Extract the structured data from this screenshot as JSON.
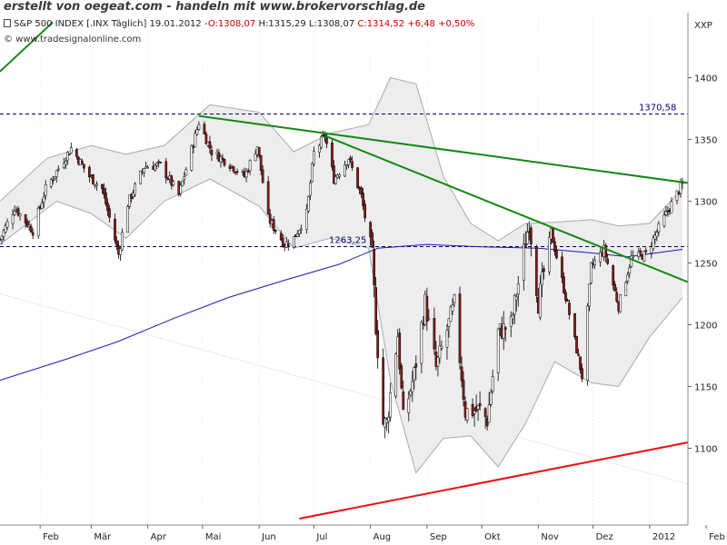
{
  "banner": "erstellt von oegeat.com - handeln mit www.brokervorschlag.de",
  "quote": {
    "instrument": "S&P 500 INDEX [.INX  Täglich] 19.01.2012 -",
    "open": "O:1308,07",
    "high": "H:1315,29",
    "low": "L:1308,07",
    "close_change": "C:1314,52 +6,48 +0,50%"
  },
  "source": "© www.tradesignalonline.com",
  "currency": "XXP",
  "colors": {
    "candle_up": "#ffffff",
    "candle_down": "#8b1a1a",
    "bollinger_fill": "#ededed",
    "bollinger_line": "#aaaaaa",
    "ma_line": "#1a1aaa",
    "trend_green": "#118811",
    "trend_red": "#ee1111",
    "hline": "#000080"
  },
  "chart_data": {
    "type": "candlestick",
    "title": "S&P 500 INDEX [.INX Täglich]",
    "ylim": [
      1043,
      1445
    ],
    "y_ticks": [
      1100,
      1150,
      1200,
      1250,
      1300,
      1350,
      1400
    ],
    "y_tick_labels": [
      "1100",
      "1150",
      "1200",
      "1250",
      "1300",
      "1350",
      "1400"
    ],
    "x_range": [
      "2011-01-10",
      "2012-03-25"
    ],
    "x_ticks": [
      {
        "date": "2011-02-01",
        "label": "Feb"
      },
      {
        "date": "2011-03-01",
        "label": "Mär"
      },
      {
        "date": "2011-04-01",
        "label": "Apr"
      },
      {
        "date": "2011-05-01",
        "label": "Mai"
      },
      {
        "date": "2011-06-01",
        "label": "Jun"
      },
      {
        "date": "2011-07-01",
        "label": "Jul"
      },
      {
        "date": "2011-08-01",
        "label": "Aug"
      },
      {
        "date": "2011-09-01",
        "label": "Sep"
      },
      {
        "date": "2011-10-01",
        "label": "Okt"
      },
      {
        "date": "2011-11-01",
        "label": "Nov"
      },
      {
        "date": "2011-12-01",
        "label": "Dez"
      },
      {
        "date": "2012-01-01",
        "label": "2012"
      },
      {
        "date": "2012-02-01",
        "label": "Feb"
      }
    ],
    "horizontal_lines": [
      {
        "value": 1370.58,
        "label": "1370,58"
      },
      {
        "value": 1263.25,
        "label": "1263,25"
      }
    ],
    "trendlines": [
      {
        "name": "resistance-long",
        "color": "green",
        "points": [
          [
            "2011-04-29",
            1369
          ],
          [
            "2012-03-25",
            1302
          ]
        ]
      },
      {
        "name": "resistance-short",
        "color": "green",
        "points": [
          [
            "2011-07-07",
            1353
          ],
          [
            "2012-03-25",
            1197
          ]
        ]
      },
      {
        "name": "support-channel",
        "color": "green",
        "points": [
          [
            "2011-01-10",
            1405
          ],
          [
            "2011-02-08",
            1445
          ]
        ]
      },
      {
        "name": "support-long",
        "color": "red",
        "points": [
          [
            "2011-06-23",
            1043
          ],
          [
            "2012-03-25",
            1123
          ]
        ]
      }
    ],
    "moving_average_200": [
      [
        "2011-01-10",
        1155
      ],
      [
        "2011-02-15",
        1172
      ],
      [
        "2011-03-15",
        1186
      ],
      [
        "2011-04-15",
        1205
      ],
      [
        "2011-05-15",
        1222
      ],
      [
        "2011-06-15",
        1236
      ],
      [
        "2011-07-15",
        1249
      ],
      [
        "2011-08-05",
        1262
      ],
      [
        "2011-09-01",
        1265
      ],
      [
        "2011-10-01",
        1263
      ],
      [
        "2011-11-01",
        1262
      ],
      [
        "2011-12-01",
        1258
      ],
      [
        "2011-12-20",
        1255
      ],
      [
        "2012-01-19",
        1261
      ]
    ],
    "bollinger": {
      "upper": [
        [
          "2011-01-10",
          1300
        ],
        [
          "2011-02-05",
          1335
        ],
        [
          "2011-03-01",
          1345
        ],
        [
          "2011-03-20",
          1338
        ],
        [
          "2011-04-10",
          1345
        ],
        [
          "2011-05-05",
          1378
        ],
        [
          "2011-06-01",
          1372
        ],
        [
          "2011-06-20",
          1340
        ],
        [
          "2011-07-10",
          1355
        ],
        [
          "2011-07-31",
          1362
        ],
        [
          "2011-08-12",
          1400
        ],
        [
          "2011-08-26",
          1395
        ],
        [
          "2011-09-10",
          1320
        ],
        [
          "2011-09-25",
          1282
        ],
        [
          "2011-10-10",
          1268
        ],
        [
          "2011-10-25",
          1282
        ],
        [
          "2011-11-10",
          1283
        ],
        [
          "2011-11-30",
          1285
        ],
        [
          "2011-12-15",
          1280
        ],
        [
          "2012-01-01",
          1282
        ],
        [
          "2012-01-19",
          1310
        ]
      ],
      "lower": [
        [
          "2011-01-10",
          1265
        ],
        [
          "2011-02-10",
          1300
        ],
        [
          "2011-03-01",
          1290
        ],
        [
          "2011-03-20",
          1270
        ],
        [
          "2011-04-10",
          1300
        ],
        [
          "2011-05-05",
          1318
        ],
        [
          "2011-06-01",
          1296
        ],
        [
          "2011-06-20",
          1262
        ],
        [
          "2011-07-10",
          1270
        ],
        [
          "2011-07-31",
          1262
        ],
        [
          "2011-08-12",
          1155
        ],
        [
          "2011-08-26",
          1080
        ],
        [
          "2011-09-10",
          1108
        ],
        [
          "2011-09-25",
          1110
        ],
        [
          "2011-10-10",
          1085
        ],
        [
          "2011-10-25",
          1120
        ],
        [
          "2011-11-10",
          1170
        ],
        [
          "2011-11-30",
          1153
        ],
        [
          "2011-12-15",
          1150
        ],
        [
          "2012-01-01",
          1190
        ],
        [
          "2012-01-19",
          1222
        ]
      ]
    },
    "close_series": [
      [
        "2011-01-10",
        1269
      ],
      [
        "2011-01-18",
        1295
      ],
      [
        "2011-01-28",
        1276
      ],
      [
        "2011-02-04",
        1310
      ],
      [
        "2011-02-18",
        1343
      ],
      [
        "2011-02-28",
        1320
      ],
      [
        "2011-03-07",
        1310
      ],
      [
        "2011-03-16",
        1257
      ],
      [
        "2011-03-21",
        1298
      ],
      [
        "2011-03-30",
        1328
      ],
      [
        "2011-04-08",
        1329
      ],
      [
        "2011-04-18",
        1305
      ],
      [
        "2011-04-26",
        1347
      ],
      [
        "2011-04-29",
        1364
      ],
      [
        "2011-05-06",
        1340
      ],
      [
        "2011-05-16",
        1330
      ],
      [
        "2011-05-24",
        1320
      ],
      [
        "2011-05-31",
        1345
      ],
      [
        "2011-06-06",
        1286
      ],
      [
        "2011-06-15",
        1265
      ],
      [
        "2011-06-20",
        1270
      ],
      [
        "2011-06-27",
        1290
      ],
      [
        "2011-07-01",
        1339
      ],
      [
        "2011-07-07",
        1353
      ],
      [
        "2011-07-12",
        1318
      ],
      [
        "2011-07-20",
        1335
      ],
      [
        "2011-07-27",
        1304
      ],
      [
        "2011-08-02",
        1254
      ],
      [
        "2011-08-04",
        1200
      ],
      [
        "2011-08-08",
        1120
      ],
      [
        "2011-08-10",
        1120
      ],
      [
        "2011-08-16",
        1192
      ],
      [
        "2011-08-19",
        1123
      ],
      [
        "2011-08-25",
        1160
      ],
      [
        "2011-08-31",
        1218
      ],
      [
        "2011-09-06",
        1165
      ],
      [
        "2011-09-16",
        1216
      ],
      [
        "2011-09-22",
        1130
      ],
      [
        "2011-09-30",
        1131
      ],
      [
        "2011-10-04",
        1123
      ],
      [
        "2011-10-10",
        1194
      ],
      [
        "2011-10-17",
        1200
      ],
      [
        "2011-10-27",
        1284
      ],
      [
        "2011-11-01",
        1218
      ],
      [
        "2011-11-08",
        1275
      ],
      [
        "2011-11-17",
        1216
      ],
      [
        "2011-11-25",
        1158
      ],
      [
        "2011-11-30",
        1247
      ],
      [
        "2011-12-07",
        1261
      ],
      [
        "2011-12-15",
        1215
      ],
      [
        "2011-12-22",
        1254
      ],
      [
        "2011-12-30",
        1257
      ],
      [
        "2012-01-06",
        1278
      ],
      [
        "2012-01-12",
        1295
      ],
      [
        "2012-01-19",
        1314.52
      ]
    ]
  }
}
